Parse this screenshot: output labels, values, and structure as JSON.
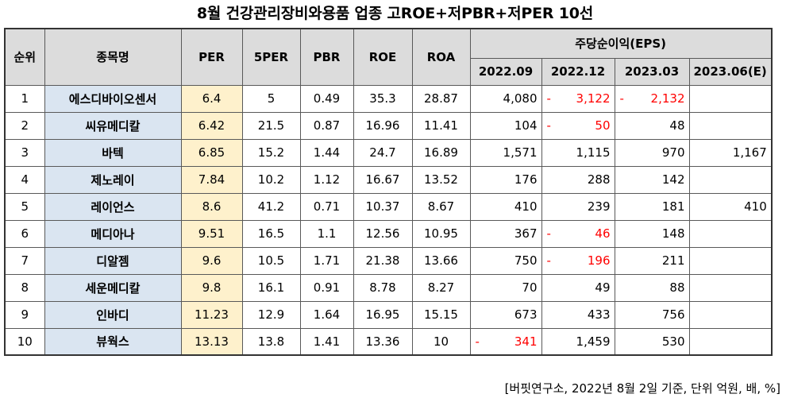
{
  "title": "8월   건강관리장비와용품 업종 고ROE+저PBR+저PER 10선",
  "headers": {
    "rank": "순위",
    "name": "종목명",
    "per": "PER",
    "per5": "5PER",
    "pbr": "PBR",
    "roe": "ROE",
    "roa": "ROA",
    "eps_group": "주당순이익(EPS)",
    "eps_periods": [
      "2022.09",
      "2022.12",
      "2023.03",
      "2023.06(E)"
    ]
  },
  "rows": [
    {
      "rank": "1",
      "name": "에스디바이오센서",
      "per": "6.4",
      "per5": "5",
      "pbr": "0.49",
      "roe": "35.3",
      "roa": "28.87",
      "eps": [
        {
          "v": "4,080",
          "neg": false
        },
        {
          "v": "3,122",
          "neg": true
        },
        {
          "v": "2,132",
          "neg": true
        },
        {
          "v": "",
          "neg": false
        }
      ]
    },
    {
      "rank": "2",
      "name": "씨유메디칼",
      "per": "6.42",
      "per5": "21.5",
      "pbr": "0.87",
      "roe": "16.96",
      "roa": "11.41",
      "eps": [
        {
          "v": "104",
          "neg": false
        },
        {
          "v": "50",
          "neg": true
        },
        {
          "v": "48",
          "neg": false
        },
        {
          "v": "",
          "neg": false
        }
      ]
    },
    {
      "rank": "3",
      "name": "바텍",
      "per": "6.85",
      "per5": "15.2",
      "pbr": "1.44",
      "roe": "24.7",
      "roa": "16.89",
      "eps": [
        {
          "v": "1,571",
          "neg": false
        },
        {
          "v": "1,115",
          "neg": false
        },
        {
          "v": "970",
          "neg": false
        },
        {
          "v": "1,167",
          "neg": false
        }
      ]
    },
    {
      "rank": "4",
      "name": "제노레이",
      "per": "7.84",
      "per5": "10.2",
      "pbr": "1.12",
      "roe": "16.67",
      "roa": "13.52",
      "eps": [
        {
          "v": "176",
          "neg": false
        },
        {
          "v": "288",
          "neg": false
        },
        {
          "v": "142",
          "neg": false
        },
        {
          "v": "",
          "neg": false
        }
      ]
    },
    {
      "rank": "5",
      "name": "레이언스",
      "per": "8.6",
      "per5": "41.2",
      "pbr": "0.71",
      "roe": "10.37",
      "roa": "8.67",
      "eps": [
        {
          "v": "410",
          "neg": false
        },
        {
          "v": "239",
          "neg": false
        },
        {
          "v": "181",
          "neg": false
        },
        {
          "v": "410",
          "neg": false
        }
      ]
    },
    {
      "rank": "6",
      "name": "메디아나",
      "per": "9.51",
      "per5": "16.5",
      "pbr": "1.1",
      "roe": "12.56",
      "roa": "10.95",
      "eps": [
        {
          "v": "367",
          "neg": false
        },
        {
          "v": "46",
          "neg": true
        },
        {
          "v": "148",
          "neg": false
        },
        {
          "v": "",
          "neg": false
        }
      ]
    },
    {
      "rank": "7",
      "name": "디알젬",
      "per": "9.6",
      "per5": "10.5",
      "pbr": "1.71",
      "roe": "21.38",
      "roa": "13.66",
      "eps": [
        {
          "v": "750",
          "neg": false
        },
        {
          "v": "196",
          "neg": true
        },
        {
          "v": "211",
          "neg": false
        },
        {
          "v": "",
          "neg": false
        }
      ]
    },
    {
      "rank": "8",
      "name": "세운메디칼",
      "per": "9.8",
      "per5": "16.1",
      "pbr": "0.91",
      "roe": "8.78",
      "roa": "8.27",
      "eps": [
        {
          "v": "70",
          "neg": false
        },
        {
          "v": "49",
          "neg": false
        },
        {
          "v": "88",
          "neg": false
        },
        {
          "v": "",
          "neg": false
        }
      ]
    },
    {
      "rank": "9",
      "name": "인바디",
      "per": "11.23",
      "per5": "12.9",
      "pbr": "1.64",
      "roe": "16.95",
      "roa": "15.15",
      "eps": [
        {
          "v": "673",
          "neg": false
        },
        {
          "v": "433",
          "neg": false
        },
        {
          "v": "756",
          "neg": false
        },
        {
          "v": "",
          "neg": false
        }
      ]
    },
    {
      "rank": "10",
      "name": "뷰웍스",
      "per": "13.13",
      "per5": "13.8",
      "pbr": "1.41",
      "roe": "13.36",
      "roa": "10",
      "eps": [
        {
          "v": "341",
          "neg": true
        },
        {
          "v": "1,459",
          "neg": false
        },
        {
          "v": "530",
          "neg": false
        },
        {
          "v": "",
          "neg": false
        }
      ]
    }
  ],
  "negative_sign": "-",
  "note": "[버핏연구소, 2022년 8월 2일 기준, 단위 억원, 배, %]",
  "colors": {
    "header_bg": "#dcdcdc",
    "name_bg": "#dae5f1",
    "per_bg": "#fef1cc",
    "negative": "#ff0000"
  }
}
